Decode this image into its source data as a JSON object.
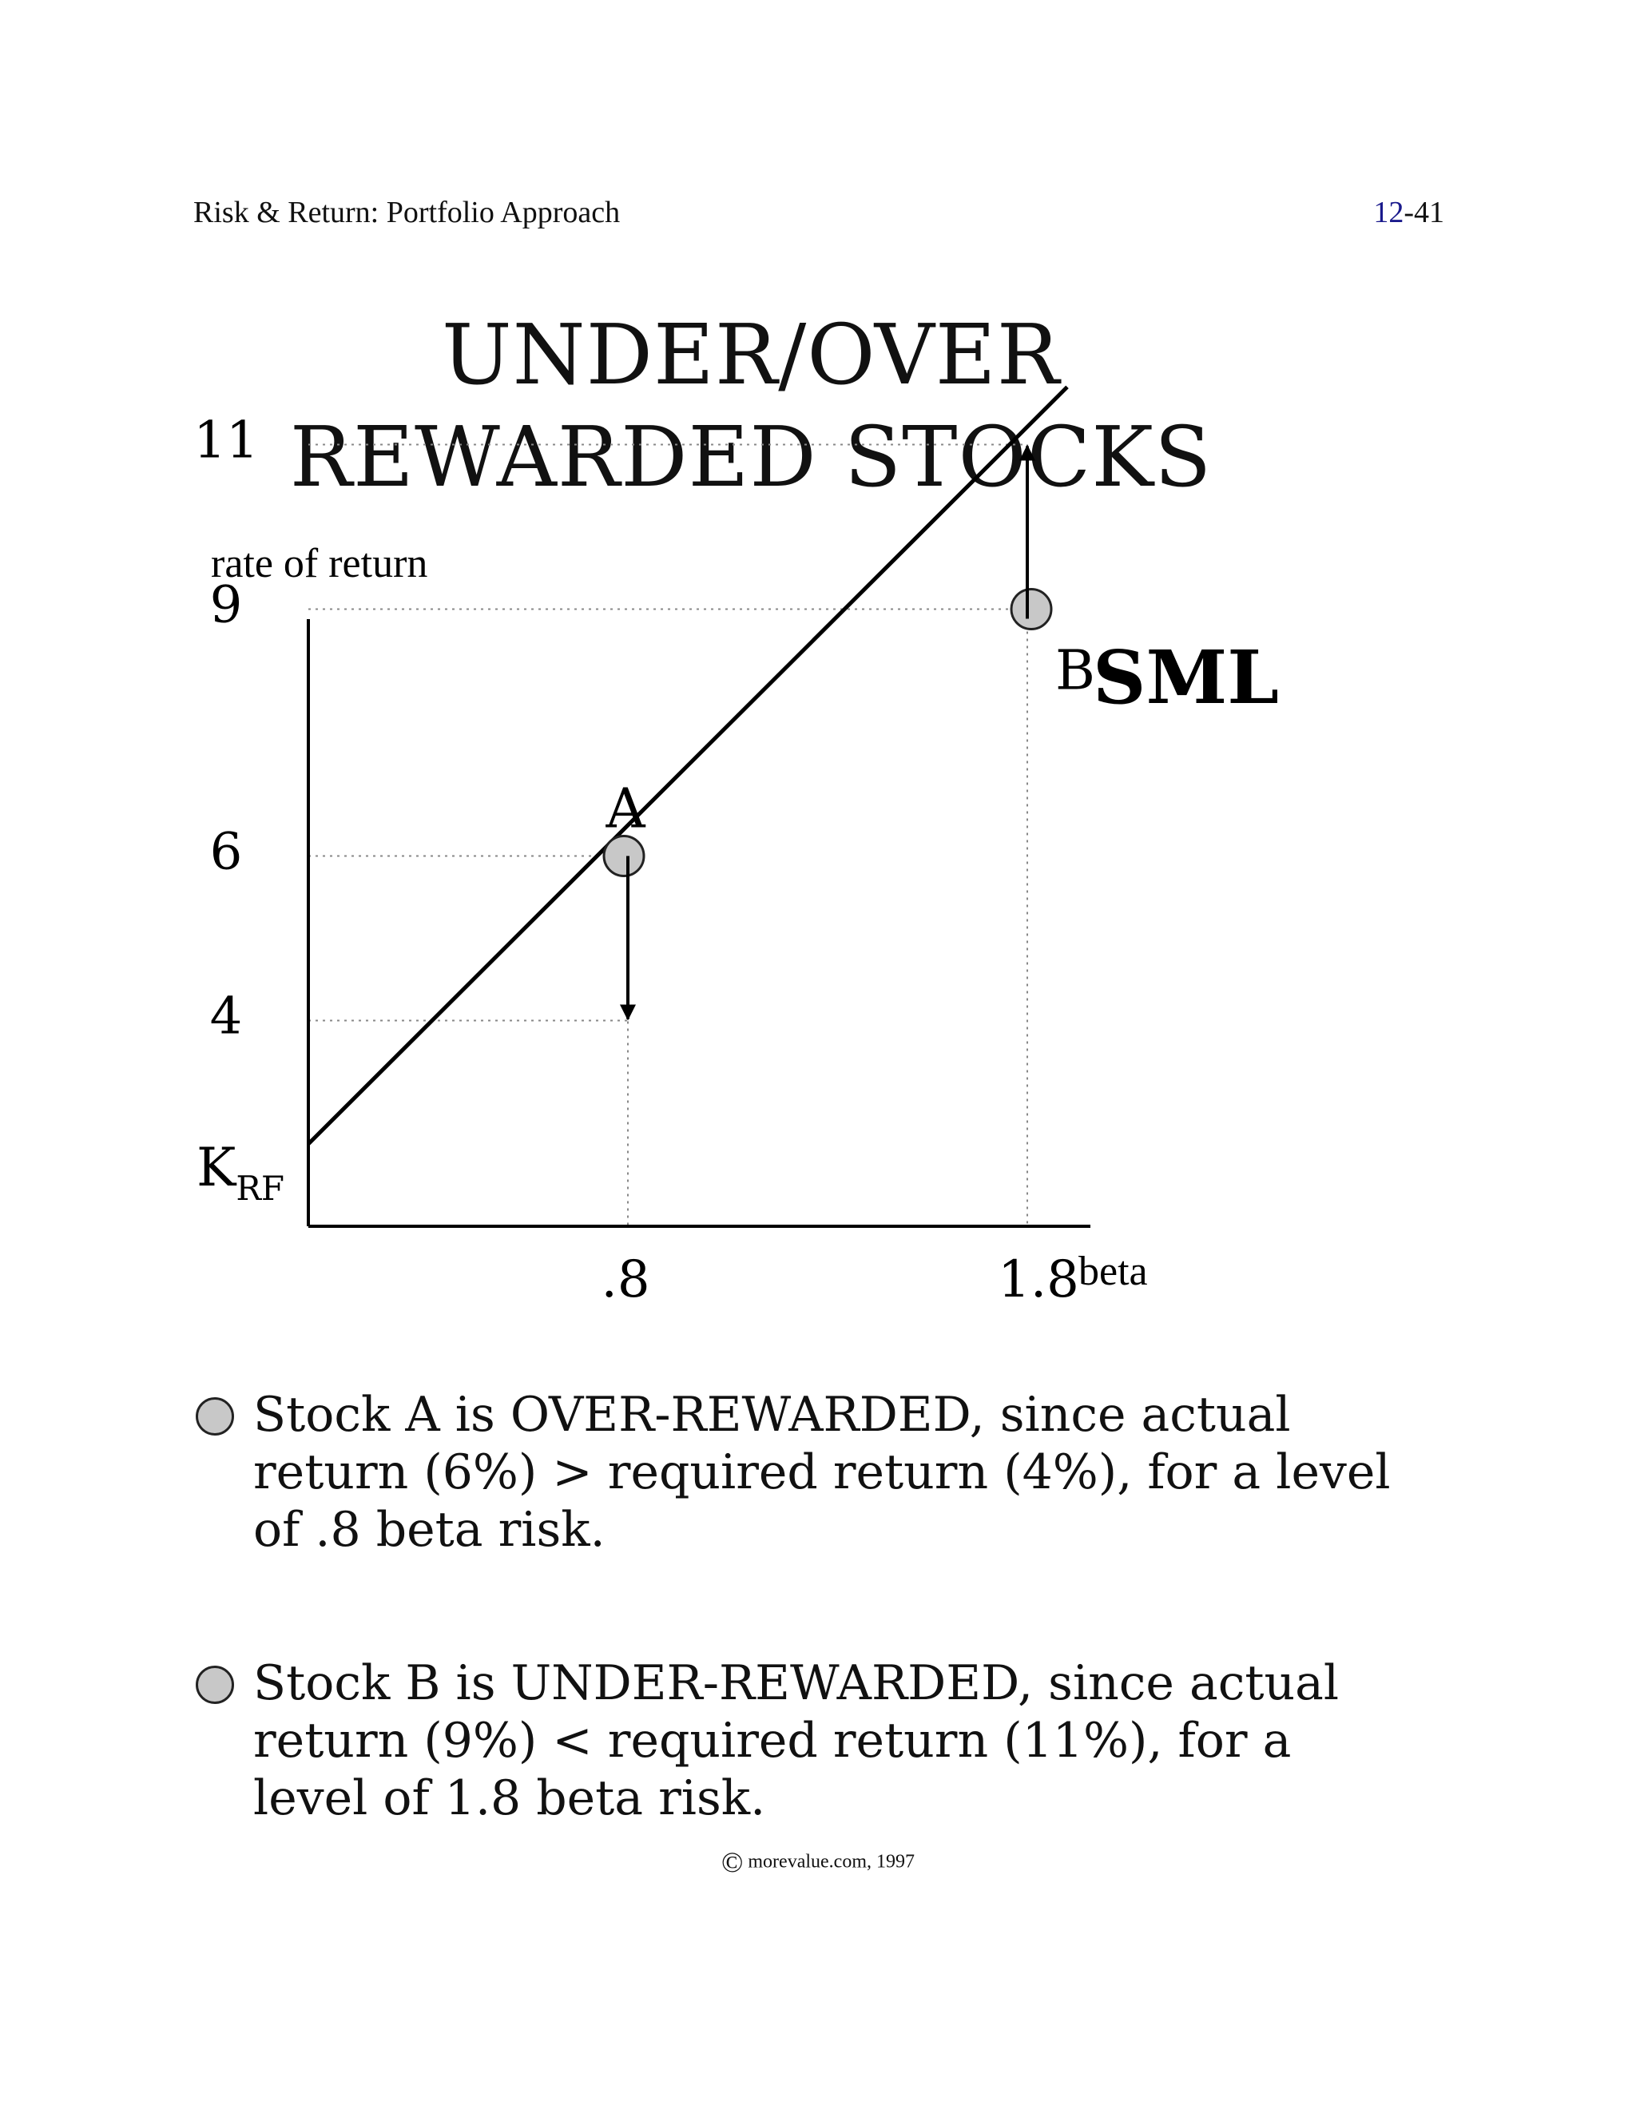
{
  "header": {
    "left": "Risk & Return: Portfolio Approach",
    "page_major": "12",
    "page_minor": "-41"
  },
  "title_lines": [
    "UNDER/OVER",
    "REWARDED STOCKS"
  ],
  "chart_data": {
    "type": "line",
    "ylabel": "rate of return",
    "xlabel": "beta",
    "series_label": "SML",
    "y_ticks": [
      "11",
      "9",
      "6",
      "4"
    ],
    "y_intercept_label": "KRF",
    "x_ticks": [
      ".8",
      "1.8"
    ],
    "sml": {
      "x": [
        0,
        1.9
      ],
      "y": [
        2.5,
        11.7
      ]
    },
    "points": [
      {
        "name": "A",
        "x": 0.8,
        "actual": 6,
        "required": 4
      },
      {
        "name": "B",
        "x": 1.8,
        "actual": 9,
        "required": 11
      }
    ],
    "xlim": [
      0,
      2.2
    ],
    "ylim": [
      0,
      13
    ],
    "grid": false,
    "colors": {
      "line": "#000000",
      "point_fill": "#c8c8c8",
      "guide": "#888888"
    }
  },
  "bullets": [
    {
      "text": "Stock A is OVER-REWARDED, since actual return (6%) > required return (4%), for a level of .8 beta risk."
    },
    {
      "text": "Stock B is UNDER-REWARDED, since actual return (9%) < required return (11%), for a level of 1.8 beta risk."
    }
  ],
  "footer": {
    "symbol": "©",
    "text": "morevalue.com, 1997"
  }
}
